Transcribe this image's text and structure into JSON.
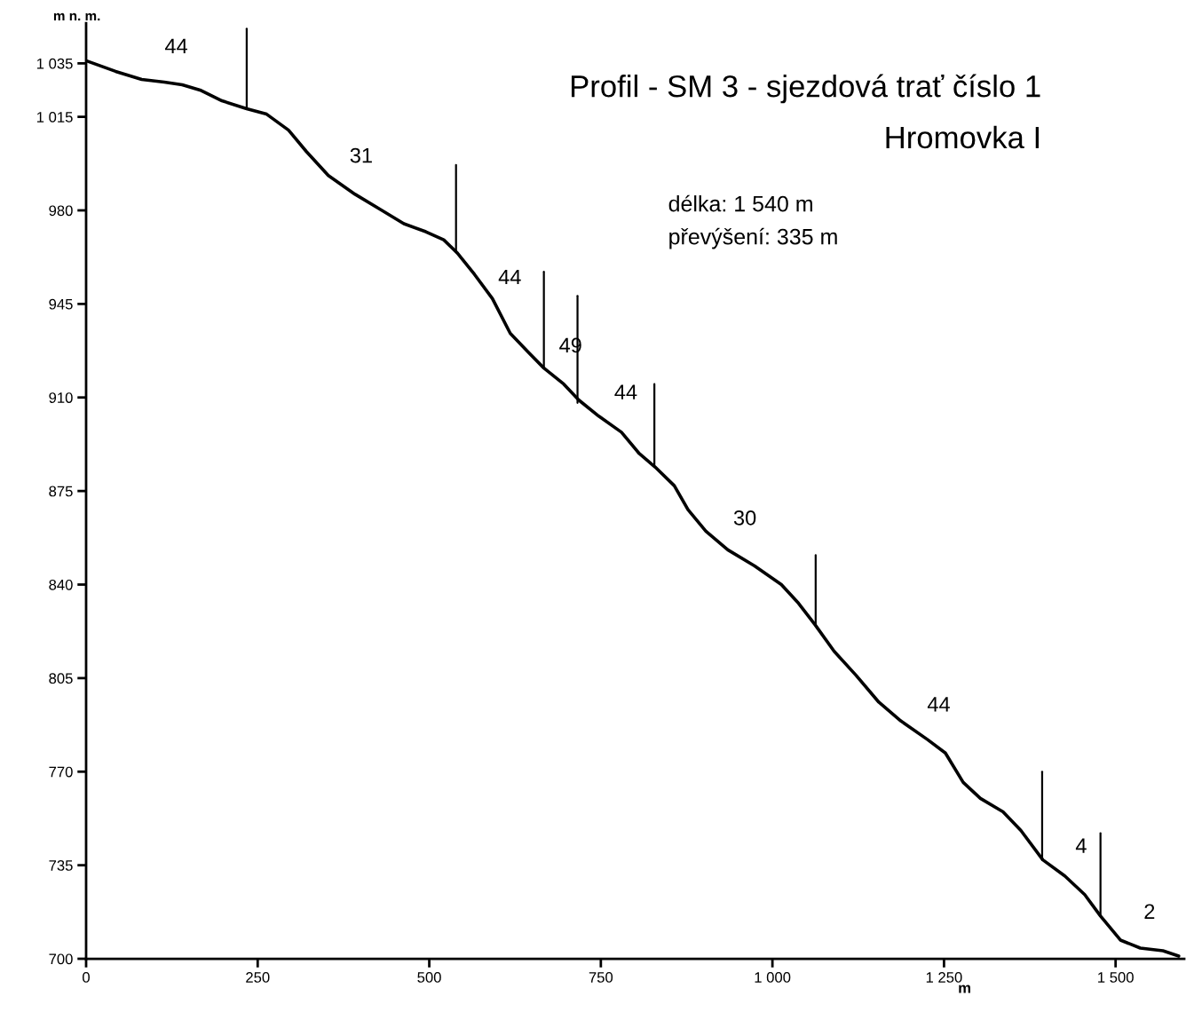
{
  "chart_data": {
    "type": "line",
    "title": "Profil - SM 3 - sjezdová trať číslo 1",
    "subtitle": "Hromovka I",
    "xlabel": "m",
    "ylabel": "m n. m.",
    "xlim": [
      0,
      1600
    ],
    "ylim": [
      700,
      1050
    ],
    "xticks": [
      0,
      250,
      500,
      750,
      {
        "value": 1000,
        "label": "1 000"
      },
      {
        "value": 1250,
        "label": "1 250"
      },
      {
        "value": 1500,
        "label": "1 500"
      }
    ],
    "yticks": [
      700,
      735,
      770,
      805,
      840,
      875,
      910,
      945,
      980,
      {
        "value": 1015,
        "label": "1 015"
      },
      {
        "value": 1035,
        "label": "1 035"
      }
    ],
    "grid": false,
    "legend": false,
    "marker": "none",
    "line_style": "solid",
    "series": [
      {
        "color": "#000000",
        "x": [
          0,
          43,
          81,
          114,
          140,
          166,
          198,
          234,
          263,
          295,
          321,
          353,
          392,
          431,
          463,
          495,
          521,
          541,
          566,
          592,
          618,
          644,
          667,
          696,
          718,
          747,
          780,
          806,
          829,
          857,
          877,
          903,
          935,
          974,
          1013,
          1038,
          1062,
          1090,
          1122,
          1155,
          1187,
          1226,
          1252,
          1278,
          1303,
          1336,
          1362,
          1394,
          1426,
          1455,
          1478,
          1507,
          1536,
          1569,
          1592
        ],
        "values": [
          1036,
          1032,
          1029,
          1028,
          1027,
          1025,
          1021,
          1018,
          1016,
          1010,
          1002,
          993,
          986,
          980,
          975,
          972,
          969,
          964,
          956,
          947,
          934,
          927,
          921,
          915,
          909,
          903,
          897,
          889,
          884,
          877,
          868,
          860,
          853,
          847,
          840,
          833,
          825,
          815,
          806,
          796,
          789,
          782,
          777,
          766,
          760,
          755,
          748,
          737,
          731,
          724,
          716,
          707,
          704,
          703,
          701
        ]
      },
      {
        "color": "#000000",
        "x": [
          234,
          234
        ],
        "values": [
          1048,
          1018
        ]
      },
      {
        "color": "#000000",
        "x": [
          539,
          539
        ],
        "values": [
          997,
          965
        ]
      },
      {
        "color": "#000000",
        "x": [
          667,
          667
        ],
        "values": [
          957,
          921
        ]
      },
      {
        "color": "#000000",
        "x": [
          716,
          716
        ],
        "values": [
          948,
          908
        ]
      },
      {
        "color": "#000000",
        "x": [
          828,
          828
        ],
        "values": [
          915,
          884
        ]
      },
      {
        "color": "#000000",
        "x": [
          1063,
          1063
        ],
        "values": [
          851,
          825
        ]
      },
      {
        "color": "#000000",
        "x": [
          1393,
          1393
        ],
        "values": [
          770,
          737
        ]
      },
      {
        "color": "#000000",
        "x": [
          1478,
          1478
        ],
        "values": [
          747,
          716
        ]
      }
    ],
    "annotations": [
      "délka: 1 540 m",
      "převýšení: 335 m",
      "44",
      "31",
      "44",
      "49",
      "44",
      "30",
      "44",
      "4",
      "2"
    ]
  }
}
